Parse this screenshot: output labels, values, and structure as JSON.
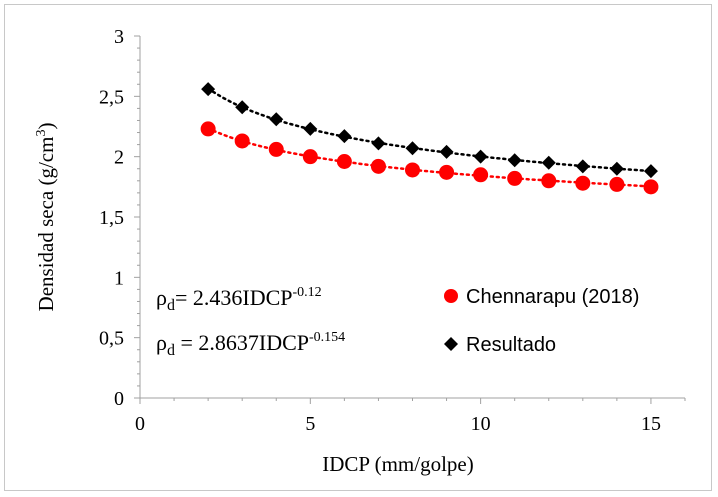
{
  "chart_data": {
    "type": "scatter",
    "xlabel": "IDCP (mm/golpe)",
    "ylabel_main": "Densidad seca (g/cm",
    "ylabel_sup": "3",
    "ylabel_close": ")",
    "xlim": [
      0,
      16
    ],
    "ylim": [
      0,
      3
    ],
    "xticks": [
      "0",
      "5",
      "10",
      "15"
    ],
    "yticks": [
      "0",
      "0,5",
      "1",
      "1,5",
      "2",
      "2,5",
      "3"
    ],
    "grid": false,
    "legend_position": "inside-lower-right",
    "series": [
      {
        "name": "Chennarapu (2018)",
        "marker": "circle",
        "color": "#ff0000",
        "trendline": "power, dotted",
        "x": [
          2,
          3,
          4,
          5,
          6,
          7,
          8,
          9,
          10,
          11,
          12,
          13,
          14,
          15
        ],
        "y": [
          2.23,
          2.13,
          2.06,
          2.0,
          1.96,
          1.92,
          1.89,
          1.87,
          1.85,
          1.82,
          1.8,
          1.78,
          1.77,
          1.75
        ]
      },
      {
        "name": "Resultado",
        "marker": "diamond",
        "color": "#000000",
        "trendline": "power, dotted",
        "x": [
          2,
          3,
          4,
          5,
          6,
          7,
          8,
          9,
          10,
          11,
          12,
          13,
          14,
          15
        ],
        "y": [
          2.56,
          2.41,
          2.31,
          2.23,
          2.17,
          2.11,
          2.07,
          2.04,
          2.0,
          1.97,
          1.95,
          1.92,
          1.9,
          1.88
        ]
      }
    ],
    "annotations": [
      {
        "rho": "ρ",
        "sub": "d",
        "eq": "= 2.436IDCP",
        "exp": "-0.12"
      },
      {
        "rho": "ρ",
        "sub": "d",
        "eq": " = 2.8637IDCP",
        "exp": "-0.154"
      }
    ]
  }
}
